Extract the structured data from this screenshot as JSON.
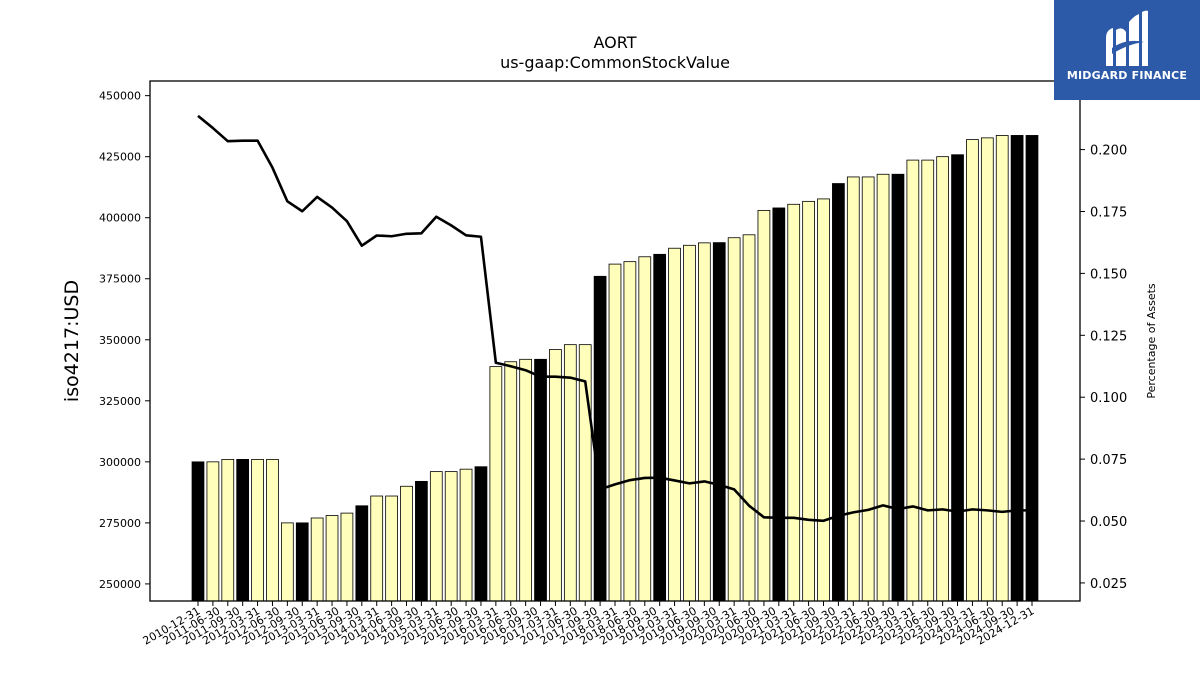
{
  "chart_data": {
    "type": "bar",
    "title": "AORT",
    "subtitle": "us-gaap:CommonStockValue",
    "ylabel": "iso4217:USD",
    "y2label": "Percentage of Assets",
    "ylim": [
      243000,
      456000
    ],
    "y2lim": [
      0.0177,
      0.2277
    ],
    "yticks": [
      250000,
      275000,
      300000,
      325000,
      350000,
      375000,
      400000,
      425000,
      450000
    ],
    "ytick_labels": [
      "250000",
      "275000",
      "300000",
      "325000",
      "350000",
      "375000",
      "400000",
      "425000",
      "450000"
    ],
    "y2ticks": [
      0.025,
      0.05,
      0.075,
      0.1,
      0.125,
      0.15,
      0.175,
      0.2
    ],
    "y2tick_labels": [
      "0.025",
      "0.050",
      "0.075",
      "0.100",
      "0.125",
      "0.150",
      "0.175",
      "0.200"
    ],
    "categories": [
      "2010-12-31",
      "2011-03-31",
      "2011-06-30",
      "2011-09-30",
      "2011-12-31",
      "2012-03-31",
      "2012-06-30",
      "2012-09-30",
      "2012-12-31",
      "2013-03-31",
      "2013-06-30",
      "2013-09-30",
      "2013-12-31",
      "2014-03-31",
      "2014-06-30",
      "2014-09-30",
      "2014-12-31",
      "2015-03-31",
      "2015-06-30",
      "2015-09-30",
      "2015-12-31",
      "2016-03-31",
      "2016-06-30",
      "2016-09-30",
      "2016-12-31",
      "2017-03-31",
      "2017-06-30",
      "2017-09-30",
      "2017-12-31",
      "2018-03-31",
      "2018-06-30",
      "2018-09-30",
      "2018-12-31",
      "2019-03-31",
      "2019-06-30",
      "2019-09-30",
      "2019-12-31",
      "2020-03-31",
      "2020-06-30",
      "2020-09-30",
      "2020-12-31",
      "2021-03-31",
      "2021-06-30",
      "2021-09-30",
      "2021-12-31",
      "2022-03-31",
      "2022-06-30",
      "2022-09-30",
      "2022-12-31",
      "2023-03-31",
      "2023-06-30",
      "2023-09-30",
      "2023-12-31",
      "2024-03-31",
      "2024-06-30",
      "2024-09-30",
      "2024-12-31"
    ],
    "xtick_labels": [
      "2010-12-31",
      "2011-06-30",
      "2011-09-30",
      "2012-03-31",
      "2012-06-30",
      "2012-09-30",
      "2013-03-31",
      "2013-06-30",
      "2013-09-30",
      "2014-03-31",
      "2014-06-30",
      "2014-09-30",
      "2015-03-31",
      "2015-06-30",
      "2015-09-30",
      "2016-03-31",
      "2016-06-30",
      "2016-09-30",
      "2017-03-31",
      "2017-06-30",
      "2017-09-30",
      "2018-03-31",
      "2018-06-30",
      "2018-09-30",
      "2019-03-31",
      "2019-06-30",
      "2019-09-30",
      "2020-03-31",
      "2020-06-30",
      "2020-09-30",
      "2021-03-31",
      "2021-06-30",
      "2021-09-30",
      "2022-03-31",
      "2022-06-30",
      "2022-09-30",
      "2023-03-31",
      "2023-06-30",
      "2023-09-30",
      "2024-03-31",
      "2024-06-30",
      "2024-09-30",
      "2024-12-31"
    ],
    "series": [
      {
        "name": "CommonStockValue",
        "type": "bar",
        "values": [
          300000,
          300000,
          301000,
          301000,
          301000,
          301000,
          275000,
          275000,
          277000,
          278000,
          279000,
          282000,
          286000,
          286000,
          290000,
          292000,
          296000,
          296000,
          297000,
          298000,
          339000,
          341000,
          342000,
          342000,
          346000,
          348000,
          348000,
          376000,
          381000,
          382000,
          384000,
          385000,
          387500,
          388700,
          389700,
          389800,
          391800,
          393000,
          403000,
          404000,
          405500,
          406700,
          407700,
          414000,
          416700,
          416700,
          417800,
          417800,
          423600,
          423600,
          425000,
          425800,
          432000,
          432700,
          433700,
          433700,
          433700
        ],
        "colors": [
          "#000000",
          "#ffffbb",
          "#ffffbb",
          "#000000",
          "#ffffbb",
          "#ffffbb",
          "#ffffbb",
          "#000000",
          "#ffffbb",
          "#ffffbb",
          "#ffffbb",
          "#000000",
          "#ffffbb",
          "#ffffbb",
          "#ffffbb",
          "#000000",
          "#ffffbb",
          "#ffffbb",
          "#ffffbb",
          "#000000",
          "#ffffbb",
          "#ffffbb",
          "#ffffbb",
          "#000000",
          "#ffffbb",
          "#ffffbb",
          "#ffffbb",
          "#000000",
          "#ffffbb",
          "#ffffbb",
          "#ffffbb",
          "#000000",
          "#ffffbb",
          "#ffffbb",
          "#ffffbb",
          "#000000",
          "#ffffbb",
          "#ffffbb",
          "#ffffbb",
          "#000000",
          "#ffffbb",
          "#ffffbb",
          "#ffffbb",
          "#000000",
          "#ffffbb",
          "#ffffbb",
          "#ffffbb",
          "#000000",
          "#ffffbb",
          "#ffffbb",
          "#ffffbb",
          "#000000",
          "#ffffbb",
          "#ffffbb",
          "#ffffbb",
          "#000000",
          "#000000"
        ]
      },
      {
        "name": "Percentage of Assets",
        "type": "line",
        "axis": "right",
        "color": "#000000",
        "values": [
          0.2136,
          0.2087,
          0.2034,
          0.2036,
          0.2036,
          0.1927,
          0.1791,
          0.1751,
          0.1809,
          0.1766,
          0.1711,
          0.1612,
          0.1653,
          0.165,
          0.166,
          0.1662,
          0.1729,
          0.1694,
          0.1654,
          0.1648,
          0.1139,
          0.1125,
          0.1109,
          0.1083,
          0.1083,
          0.1079,
          0.1064,
          0.0628,
          0.0648,
          0.0665,
          0.0674,
          0.0675,
          0.0664,
          0.0652,
          0.066,
          0.0646,
          0.0628,
          0.0562,
          0.0515,
          0.0513,
          0.0513,
          0.0505,
          0.0501,
          0.0521,
          0.0535,
          0.0545,
          0.0563,
          0.0548,
          0.0559,
          0.0543,
          0.0547,
          0.0538,
          0.0547,
          0.0543,
          0.0537,
          0.0543,
          0.0543
        ]
      }
    ],
    "grid": false,
    "legend": "none"
  },
  "logo": {
    "text": "MIDGARD FINANCE",
    "background": "#2c5aa8",
    "icon": "midgard-finance-logo-icon"
  }
}
